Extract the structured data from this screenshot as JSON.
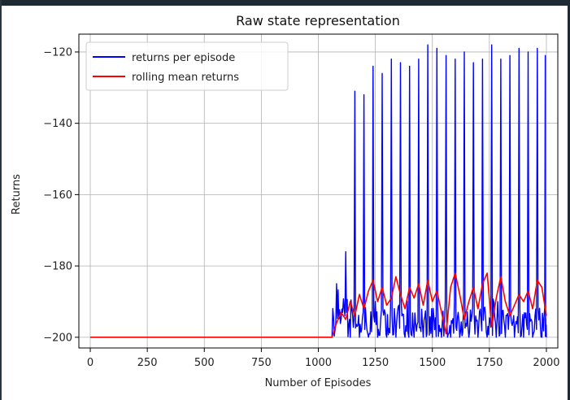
{
  "chart_data": {
    "type": "line",
    "title": "Raw state representation",
    "xlabel": "Number of Episodes",
    "ylabel": "Returns",
    "xlim": [
      -50,
      2050
    ],
    "ylim": [
      -203,
      -115
    ],
    "xticks": [
      0,
      250,
      500,
      750,
      1000,
      1250,
      1500,
      1750,
      2000
    ],
    "yticks": [
      -200,
      -180,
      -160,
      -140,
      -120
    ],
    "ytick_labels": [
      "−200",
      "−180",
      "−160",
      "−140",
      "−120"
    ],
    "grid": true,
    "legend_position": "top-left",
    "series": [
      {
        "name": "returns per episode",
        "color": "#0000ff",
        "x_range": [
          0,
          2000
        ],
        "baseline": -200,
        "description_points": [
          [
            0,
            -200
          ],
          [
            1060,
            -200
          ],
          [
            1080,
            -185
          ],
          [
            1100,
            -195
          ],
          [
            1120,
            -176
          ],
          [
            1140,
            -200
          ],
          [
            1160,
            -131
          ],
          [
            1180,
            -200
          ],
          [
            1200,
            -132
          ],
          [
            1220,
            -200
          ],
          [
            1240,
            -124
          ],
          [
            1260,
            -200
          ],
          [
            1280,
            -126
          ],
          [
            1300,
            -200
          ],
          [
            1320,
            -122
          ],
          [
            1340,
            -200
          ],
          [
            1360,
            -123
          ],
          [
            1380,
            -200
          ],
          [
            1400,
            -124
          ],
          [
            1420,
            -200
          ],
          [
            1440,
            -122
          ],
          [
            1460,
            -200
          ],
          [
            1480,
            -118
          ],
          [
            1500,
            -200
          ],
          [
            1520,
            -119
          ],
          [
            1540,
            -200
          ],
          [
            1560,
            -121
          ],
          [
            1580,
            -200
          ],
          [
            1600,
            -122
          ],
          [
            1620,
            -200
          ],
          [
            1640,
            -120
          ],
          [
            1660,
            -200
          ],
          [
            1680,
            -123
          ],
          [
            1700,
            -200
          ],
          [
            1720,
            -122
          ],
          [
            1740,
            -200
          ],
          [
            1760,
            -118
          ],
          [
            1780,
            -200
          ],
          [
            1800,
            -122
          ],
          [
            1820,
            -200
          ],
          [
            1840,
            -121
          ],
          [
            1860,
            -200
          ],
          [
            1880,
            -119
          ],
          [
            1900,
            -200
          ],
          [
            1920,
            -120
          ],
          [
            1940,
            -200
          ],
          [
            1960,
            -119
          ],
          [
            1980,
            -200
          ],
          [
            1995,
            -121
          ],
          [
            2000,
            -200
          ]
        ]
      },
      {
        "name": "rolling mean returns",
        "color": "#ff0000",
        "points": [
          [
            0,
            -200
          ],
          [
            1060,
            -200
          ],
          [
            1080,
            -196
          ],
          [
            1100,
            -193
          ],
          [
            1120,
            -195
          ],
          [
            1140,
            -190
          ],
          [
            1160,
            -194
          ],
          [
            1180,
            -188
          ],
          [
            1200,
            -192
          ],
          [
            1220,
            -187
          ],
          [
            1240,
            -184
          ],
          [
            1260,
            -190
          ],
          [
            1280,
            -186
          ],
          [
            1300,
            -191
          ],
          [
            1320,
            -189
          ],
          [
            1340,
            -183
          ],
          [
            1360,
            -188
          ],
          [
            1380,
            -192
          ],
          [
            1400,
            -186
          ],
          [
            1420,
            -189
          ],
          [
            1440,
            -185
          ],
          [
            1460,
            -191
          ],
          [
            1480,
            -184
          ],
          [
            1500,
            -190
          ],
          [
            1520,
            -187
          ],
          [
            1540,
            -193
          ],
          [
            1560,
            -199
          ],
          [
            1580,
            -186
          ],
          [
            1600,
            -182
          ],
          [
            1620,
            -188
          ],
          [
            1640,
            -195
          ],
          [
            1660,
            -190
          ],
          [
            1680,
            -186
          ],
          [
            1700,
            -192
          ],
          [
            1720,
            -185
          ],
          [
            1740,
            -182
          ],
          [
            1760,
            -197
          ],
          [
            1780,
            -189
          ],
          [
            1800,
            -183
          ],
          [
            1820,
            -190
          ],
          [
            1840,
            -194
          ],
          [
            1860,
            -191
          ],
          [
            1880,
            -188
          ],
          [
            1900,
            -190
          ],
          [
            1920,
            -187
          ],
          [
            1940,
            -192
          ],
          [
            1960,
            -184
          ],
          [
            1980,
            -186
          ],
          [
            2000,
            -194
          ]
        ]
      }
    ]
  }
}
